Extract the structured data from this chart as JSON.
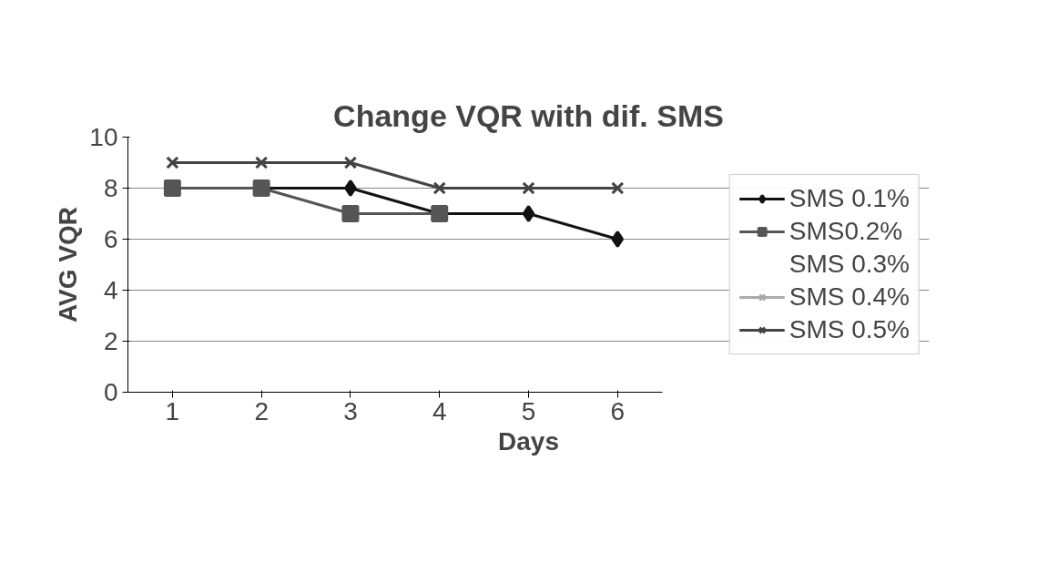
{
  "chart_data": {
    "type": "line",
    "title": "Change VQR with dif. SMS",
    "xlabel": "Days",
    "ylabel": "AVG VQR",
    "categories": [
      "1",
      "2",
      "3",
      "4",
      "5",
      "6"
    ],
    "series": [
      {
        "name": "SMS 0.1%",
        "color": "#111111",
        "marker": "diamond",
        "values": [
          null,
          8,
          8,
          7,
          7,
          6
        ]
      },
      {
        "name": "SMS0.2%",
        "color": "#555555",
        "marker": "square",
        "values": [
          8,
          8,
          7,
          7,
          null,
          null
        ]
      },
      {
        "name": "SMS 0.3%",
        "marker": "none",
        "values": [
          null,
          null,
          null,
          null,
          null,
          null
        ]
      },
      {
        "name": "SMS 0.4%",
        "color": "#aaaaaa",
        "marker": "cross",
        "values": [
          null,
          null,
          null,
          null,
          null,
          null
        ]
      },
      {
        "name": "SMS 0.5%",
        "color": "#444444",
        "marker": "cross",
        "values": [
          9,
          9,
          9,
          8,
          8,
          8
        ]
      }
    ],
    "ylim": [
      0,
      10
    ],
    "yticks": [
      0,
      2,
      4,
      6,
      8,
      10
    ],
    "grid": "y",
    "legend": "right"
  }
}
